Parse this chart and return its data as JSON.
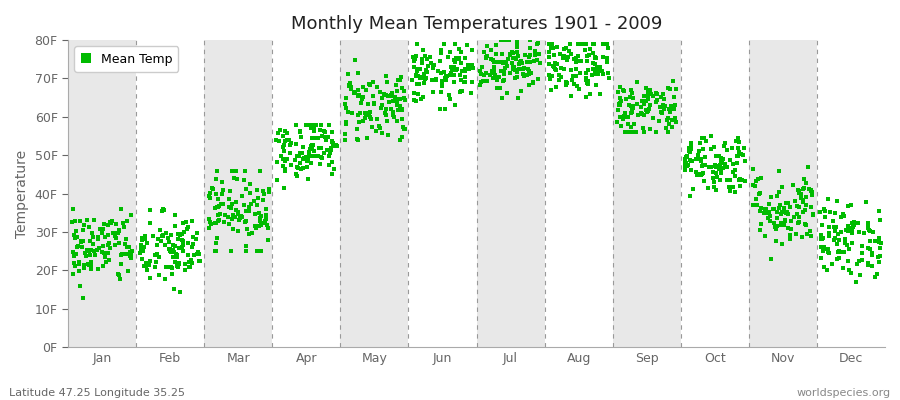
{
  "title": "Monthly Mean Temperatures 1901 - 2009",
  "ylabel": "Temperature",
  "subtitle_left": "Latitude 47.25 Longitude 35.25",
  "subtitle_right": "worldspecies.org",
  "legend_label": "Mean Temp",
  "dot_color": "#00bb00",
  "bg_color": "#ffffff",
  "plot_bg_color": "#ffffff",
  "band_color": "#e8e8e8",
  "ylim": [
    0,
    80
  ],
  "ytick_labels": [
    "0F",
    "10F",
    "20F",
    "30F",
    "40F",
    "50F",
    "60F",
    "70F",
    "80F"
  ],
  "ytick_values": [
    0,
    10,
    20,
    30,
    40,
    50,
    60,
    70,
    80
  ],
  "months": [
    "Jan",
    "Feb",
    "Mar",
    "Apr",
    "May",
    "Jun",
    "Jul",
    "Aug",
    "Sep",
    "Oct",
    "Nov",
    "Dec"
  ],
  "n_years": 109,
  "monthly_mean": [
    26,
    25,
    36,
    52,
    63,
    71,
    74,
    73,
    62,
    48,
    36,
    28
  ],
  "monthly_std": [
    5,
    5,
    5,
    4,
    5,
    4,
    4,
    4,
    4,
    4,
    5,
    5
  ],
  "monthly_min": [
    9,
    10,
    25,
    38,
    54,
    62,
    65,
    64,
    56,
    37,
    23,
    17
  ],
  "monthly_max": [
    36,
    37,
    46,
    58,
    77,
    79,
    80,
    79,
    72,
    60,
    52,
    41
  ],
  "marker_size": 6,
  "dpi": 100,
  "figsize": [
    9.0,
    4.0
  ]
}
